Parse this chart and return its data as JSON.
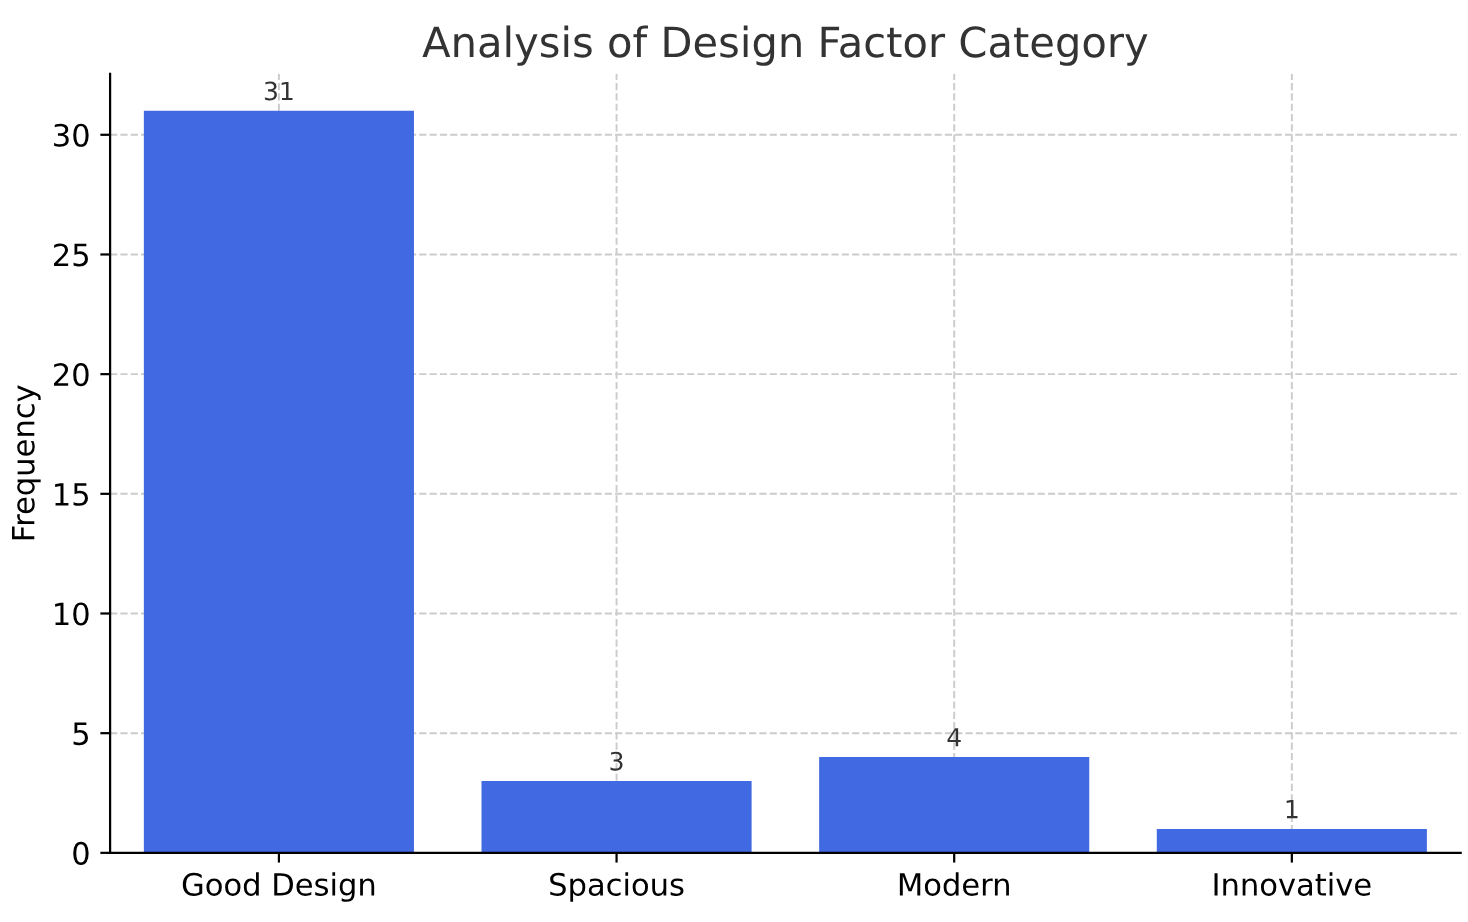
{
  "chart_data": {
    "type": "bar",
    "title": "Analysis of Design Factor Category",
    "ylabel": "Frequency",
    "categories": [
      "Good Design",
      "Spacious",
      "Modern",
      "Innovative"
    ],
    "values": [
      31,
      3,
      4,
      1
    ],
    "color": "#4169e1",
    "ylim": [
      0,
      32.55
    ],
    "yticks": [
      0,
      5,
      10,
      15,
      20,
      25,
      30
    ],
    "grid": true,
    "data_labels": true
  }
}
